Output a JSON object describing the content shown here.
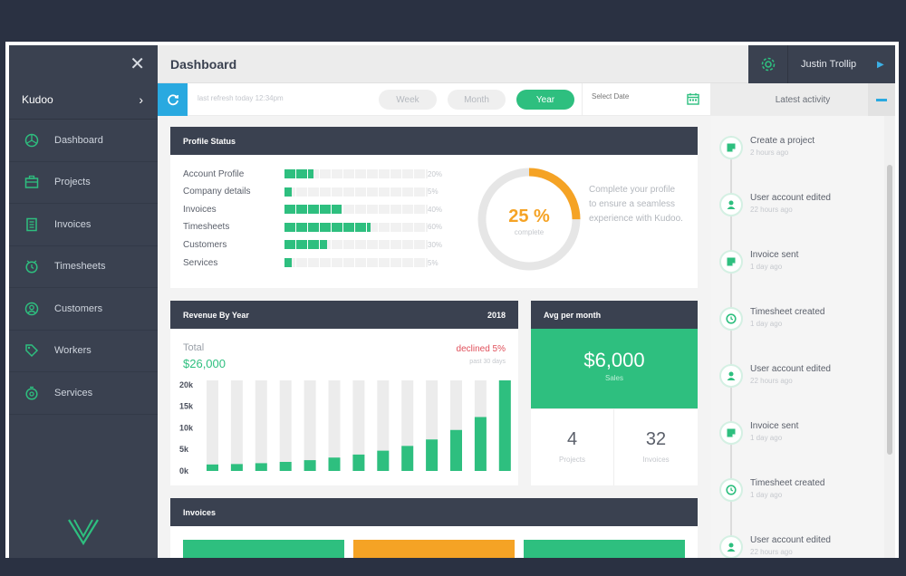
{
  "sidebar": {
    "brand": "Kudoo",
    "items": [
      {
        "label": "Dashboard",
        "icon": "dashboard-icon"
      },
      {
        "label": "Projects",
        "icon": "projects-icon"
      },
      {
        "label": "Invoices",
        "icon": "invoices-icon"
      },
      {
        "label": "Timesheets",
        "icon": "timesheets-icon"
      },
      {
        "label": "Customers",
        "icon": "customers-icon"
      },
      {
        "label": "Workers",
        "icon": "workers-icon"
      },
      {
        "label": "Services",
        "icon": "services-icon"
      }
    ]
  },
  "header": {
    "title": "Dashboard",
    "user_name": "Justin Trollip"
  },
  "toolbar": {
    "refresh_text": "last refresh today 12:34pm",
    "ranges": [
      "Week",
      "Month",
      "Year"
    ],
    "active_range": "Year",
    "date_placeholder": "Select Date"
  },
  "profile": {
    "title": "Profile Status",
    "rows": [
      {
        "label": "Account Profile",
        "pct_label": "20%",
        "pct": 0.2
      },
      {
        "label": "Company details",
        "pct_label": "5%",
        "pct": 0.05
      },
      {
        "label": "Invoices",
        "pct_label": "40%",
        "pct": 0.4
      },
      {
        "label": "Timesheets",
        "pct_label": "60%",
        "pct": 0.6
      },
      {
        "label": "Customers",
        "pct_label": "30%",
        "pct": 0.3
      },
      {
        "label": "Services",
        "pct_label": "5%",
        "pct": 0.05
      }
    ],
    "complete_value": "25 %",
    "complete_fraction": 0.25,
    "complete_label": "complete",
    "message": "Complete your profile to ensure a seamless experience with Kudoo."
  },
  "revenue": {
    "title": "Revenue By Year",
    "year": "2018",
    "total_label": "Total",
    "total_value": "$26,000",
    "change": "declined 5%",
    "change_sub": "past 30 days"
  },
  "chart_data": {
    "type": "bar",
    "title": "Revenue By Year",
    "categories": [
      "",
      "",
      "",
      "",
      "",
      "",
      "",
      "",
      "",
      "",
      "",
      "",
      ""
    ],
    "yticks": [
      "0k",
      "5k",
      "10k",
      "15k",
      "20k"
    ],
    "ylim": [
      0,
      21000
    ],
    "values": [
      1500,
      1600,
      1800,
      2100,
      2500,
      3100,
      3800,
      4700,
      5800,
      7300,
      9500,
      12500,
      21000
    ],
    "grid": false
  },
  "avg": {
    "title": "Avg per month",
    "amount": "$6,000",
    "amount_label": "Sales",
    "projects_count": "4",
    "projects_label": "Projects",
    "invoices_count": "32",
    "invoices_label": "Invoices"
  },
  "invoices": {
    "title": "Invoices",
    "bar_colors": [
      "#2ebf7f",
      "#f5a325",
      "#2ebf7f"
    ]
  },
  "activity": {
    "title": "Latest activity",
    "items": [
      {
        "title": "Create a project",
        "time": "2 hours ago",
        "icon": "note-icon"
      },
      {
        "title": "User account edited",
        "time": "22 hours ago",
        "icon": "user-icon"
      },
      {
        "title": "Invoice sent",
        "time": "1 day ago",
        "icon": "note-icon"
      },
      {
        "title": "Timesheet created",
        "time": "1 day ago",
        "icon": "clock-icon"
      },
      {
        "title": "User account edited",
        "time": "22 hours ago",
        "icon": "user-icon"
      },
      {
        "title": "Invoice sent",
        "time": "1 day ago",
        "icon": "note-icon"
      },
      {
        "title": "Timesheet created",
        "time": "1 day ago",
        "icon": "clock-icon"
      },
      {
        "title": "User account edited",
        "time": "22 hours ago",
        "icon": "user-icon"
      }
    ]
  },
  "colors": {
    "accent": "#2ebf7f",
    "warning": "#f5a325",
    "info": "#29a9e0",
    "dark": "#3a4150",
    "danger": "#e0505b"
  }
}
